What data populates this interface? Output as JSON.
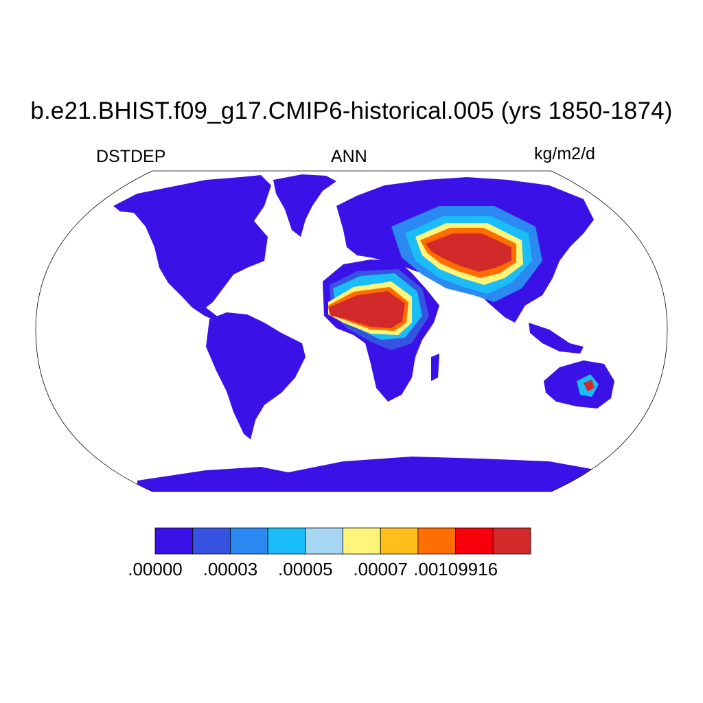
{
  "title": "b.e21.BHIST.f09_g17.CMIP6-historical.005 (yrs 1850-1874)",
  "variable": "DSTDEP",
  "season": "ANN",
  "units": "kg/m2/d",
  "projection": "Robinson",
  "colorbar": {
    "colors": [
      "#3a12e8",
      "#3553e0",
      "#2a8af2",
      "#1abdf7",
      "#a6d6f2",
      "#fff57a",
      "#ffbe1a",
      "#ff6e00",
      "#f5000a",
      "#d22a2a"
    ],
    "labels": [
      {
        "text": ".00000",
        "boundary": 0
      },
      {
        "text": ".00003",
        "boundary": 2
      },
      {
        "text": ".00005",
        "boundary": 4
      },
      {
        "text": ".00007",
        "boundary": 6
      },
      {
        "text": ".00109916",
        "boundary": 8
      }
    ]
  }
}
